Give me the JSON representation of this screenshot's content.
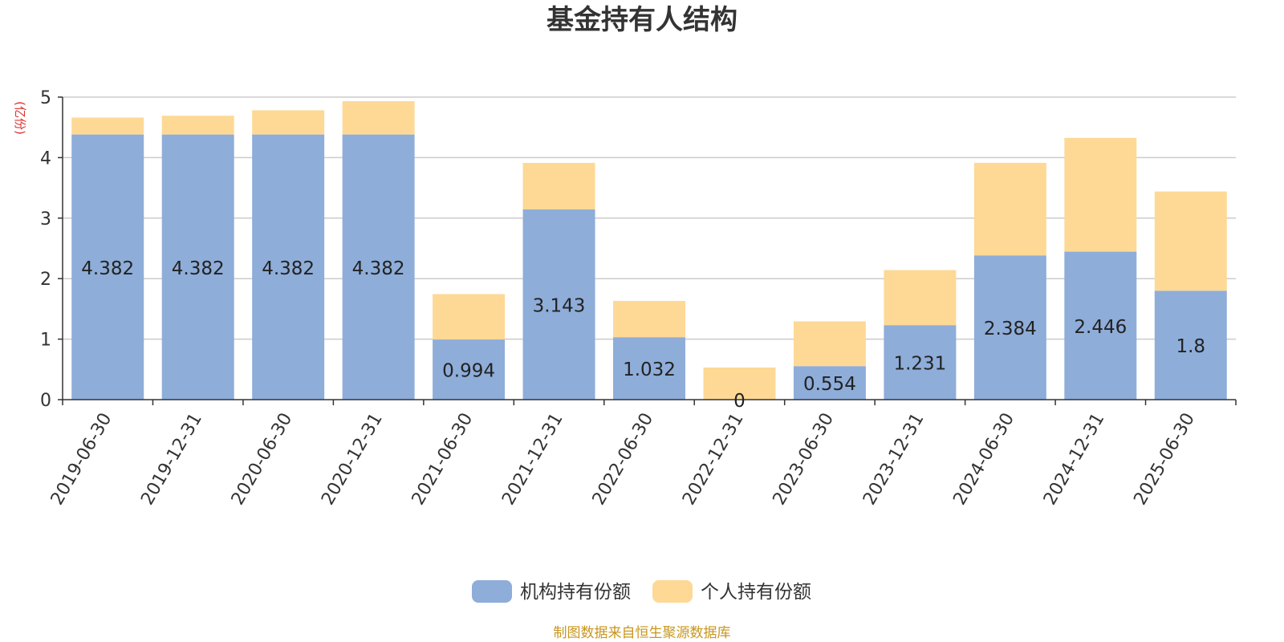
{
  "chart_data": {
    "type": "bar",
    "stacked": true,
    "title": "基金持有人结构",
    "ylabel": "(亿份)",
    "xlabel": "",
    "ylim": [
      0,
      5
    ],
    "yticks": [
      0,
      1,
      2,
      3,
      4,
      5
    ],
    "grid": true,
    "legend_position": "bottom-center",
    "categories": [
      "2019-06-30",
      "2019-12-31",
      "2020-06-30",
      "2020-12-31",
      "2021-06-30",
      "2021-12-31",
      "2022-06-30",
      "2022-12-31",
      "2023-06-30",
      "2023-12-31",
      "2024-06-30",
      "2024-12-31",
      "2025-06-30"
    ],
    "series": [
      {
        "name": "机构持有份额",
        "color": "#8eadd9",
        "values": [
          4.382,
          4.382,
          4.382,
          4.382,
          0.994,
          3.143,
          1.032,
          0,
          0.554,
          1.231,
          2.384,
          2.446,
          1.8
        ],
        "labels": [
          "4.382",
          "4.382",
          "4.382",
          "4.382",
          "0.994",
          "3.143",
          "1.032",
          "0",
          "0.554",
          "1.231",
          "2.384",
          "2.446",
          "1.8"
        ]
      },
      {
        "name": "个人持有份额",
        "color": "#fdd995",
        "values": [
          0.28,
          0.31,
          0.4,
          0.55,
          0.75,
          0.77,
          0.6,
          0.53,
          0.74,
          0.91,
          1.53,
          1.88,
          1.64
        ]
      }
    ],
    "source": "制图数据来自恒生聚源数据库"
  }
}
